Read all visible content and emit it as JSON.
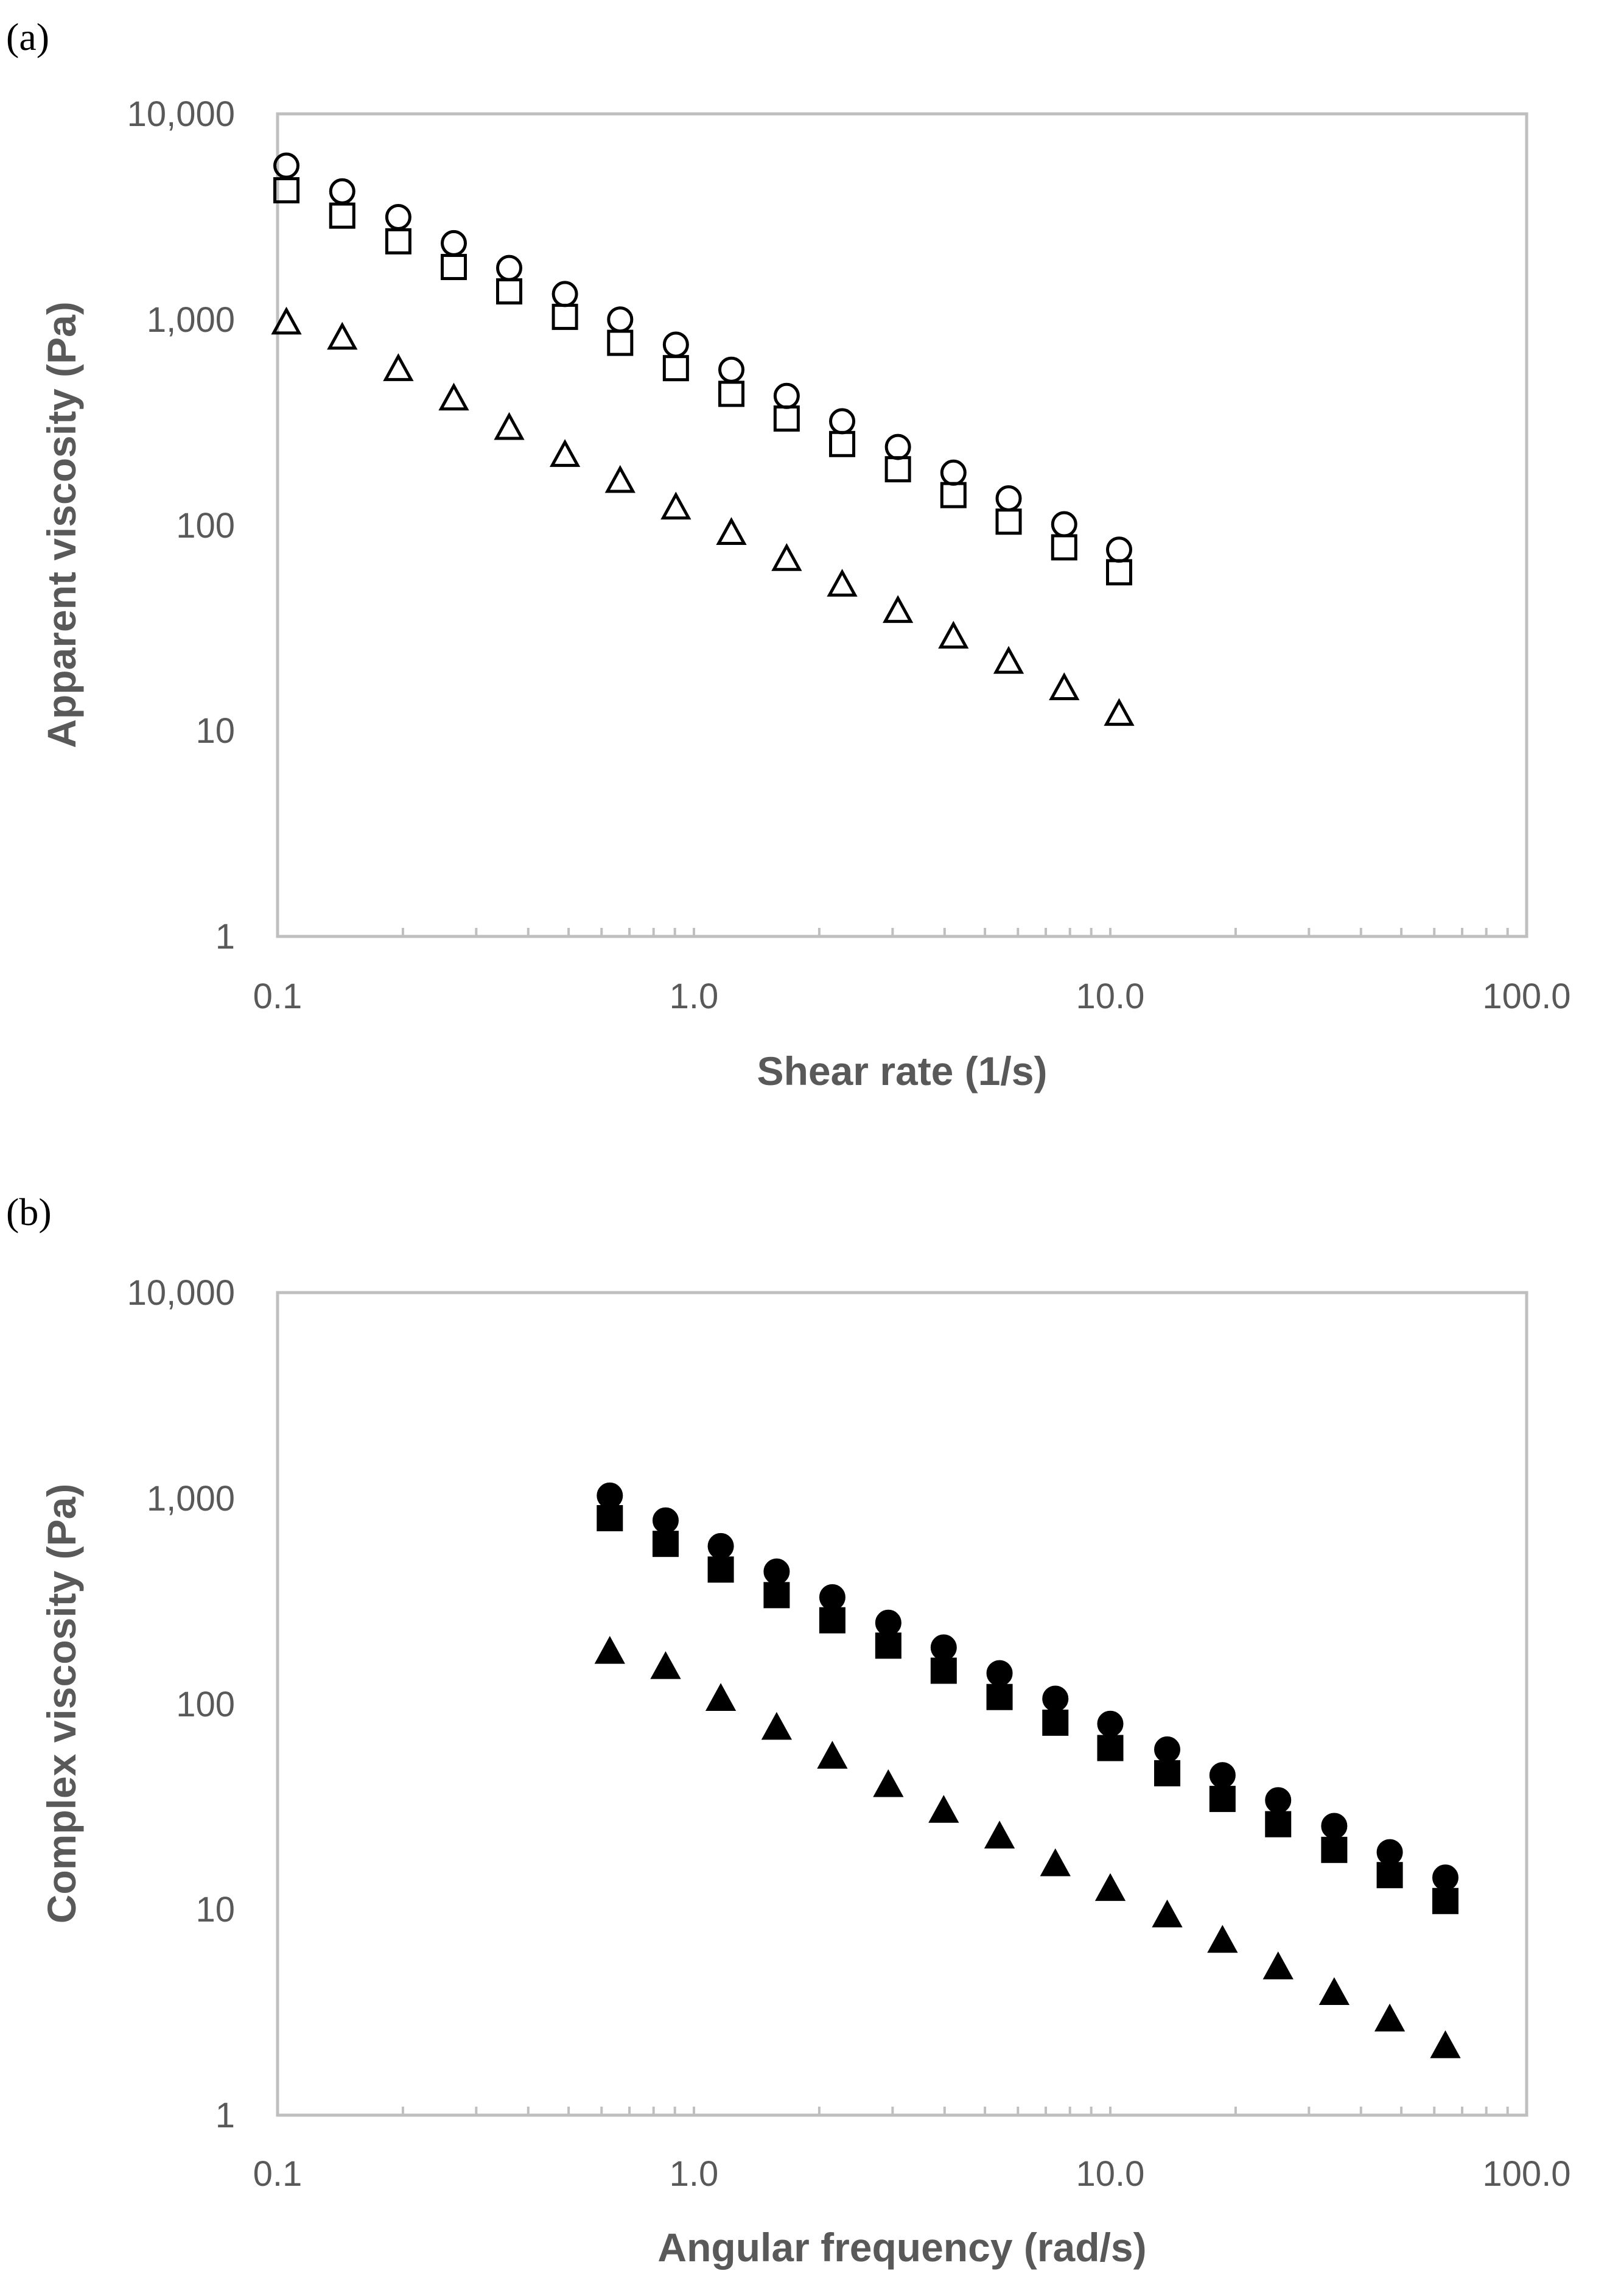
{
  "chart_data": [
    {
      "panel_label": "(a)",
      "type": "scatter",
      "xscale": "log",
      "yscale": "log",
      "xlabel": "Shear rate (1/s)",
      "ylabel": "Apparent viscosity (Pa)",
      "xlim": [
        0.1,
        100
      ],
      "ylim": [
        1,
        10000
      ],
      "xticks": [
        "0.1",
        "1.0",
        "10.0",
        "100.0"
      ],
      "yticks": [
        "1",
        "10",
        "100",
        "1,000",
        "10,000"
      ],
      "grid": false,
      "series": [
        {
          "name": "circle",
          "marker": "circle",
          "filled": false,
          "x": [
            0.105,
            0.143,
            0.195,
            0.265,
            0.36,
            0.49,
            0.665,
            0.905,
            1.23,
            1.67,
            2.27,
            3.09,
            4.2,
            5.7,
            7.75,
            10.5
          ],
          "y": [
            5600,
            4200,
            3150,
            2350,
            1780,
            1330,
            1000,
            755,
            570,
            425,
            320,
            240,
            180,
            135,
            101,
            76
          ]
        },
        {
          "name": "square",
          "marker": "square",
          "filled": false,
          "x": [
            0.105,
            0.143,
            0.195,
            0.265,
            0.36,
            0.49,
            0.665,
            0.905,
            1.23,
            1.67,
            2.27,
            3.09,
            4.2,
            5.7,
            7.75,
            10.5
          ],
          "y": [
            4250,
            3200,
            2400,
            1800,
            1370,
            1030,
            770,
            580,
            435,
            330,
            248,
            187,
            140,
            104,
            78,
            59
          ]
        },
        {
          "name": "triangle",
          "marker": "triangle",
          "filled": false,
          "x": [
            0.105,
            0.143,
            0.195,
            0.265,
            0.36,
            0.49,
            0.665,
            0.905,
            1.23,
            1.67,
            2.27,
            3.09,
            4.2,
            5.7,
            7.75,
            10.5
          ],
          "y": [
            960,
            810,
            570,
            410,
            295,
            218,
            163,
            121,
            91,
            68,
            51,
            38,
            28.5,
            21.5,
            16,
            12
          ]
        }
      ]
    },
    {
      "panel_label": "(b)",
      "type": "scatter",
      "xscale": "log",
      "yscale": "log",
      "xlabel": "Angular frequency (rad/s)",
      "ylabel": "Complex viscosity (Pa)",
      "xlim": [
        0.1,
        100
      ],
      "ylim": [
        1,
        10000
      ],
      "xticks": [
        "0.1",
        "1.0",
        "10.0",
        "100.0"
      ],
      "yticks": [
        "1",
        "10",
        "100",
        "1,000",
        "10,000"
      ],
      "grid": false,
      "series": [
        {
          "name": "circle",
          "marker": "circle",
          "filled": true,
          "x": [
            0.628,
            0.855,
            1.16,
            1.58,
            2.15,
            2.93,
            3.98,
            5.42,
            7.38,
            10.0,
            13.7,
            18.6,
            25.3,
            34.5,
            46.9,
            63.8
          ],
          "y": [
            1030,
            780,
            585,
            440,
            330,
            248,
            188,
            141,
            106,
            80,
            60,
            45,
            34,
            25.5,
            19,
            14.3
          ]
        },
        {
          "name": "square",
          "marker": "square",
          "filled": true,
          "x": [
            0.628,
            0.855,
            1.16,
            1.58,
            2.15,
            2.93,
            3.98,
            5.42,
            7.38,
            10.0,
            13.7,
            18.6,
            25.3,
            34.5,
            46.9,
            63.8
          ],
          "y": [
            800,
            600,
            450,
            338,
            255,
            192,
            145,
            108,
            81,
            61,
            46,
            34.5,
            26,
            19.5,
            14.7,
            11
          ]
        },
        {
          "name": "triangle",
          "marker": "triangle",
          "filled": true,
          "x": [
            0.628,
            0.855,
            1.16,
            1.58,
            2.15,
            2.93,
            3.98,
            5.42,
            7.38,
            10.0,
            13.7,
            18.6,
            25.3,
            34.5,
            46.9,
            63.8
          ],
          "y": [
            178,
            150,
            105,
            76,
            55,
            40,
            30,
            22.5,
            16.5,
            12.5,
            9.3,
            7,
            5.2,
            3.9,
            2.9,
            2.15
          ]
        }
      ]
    }
  ]
}
